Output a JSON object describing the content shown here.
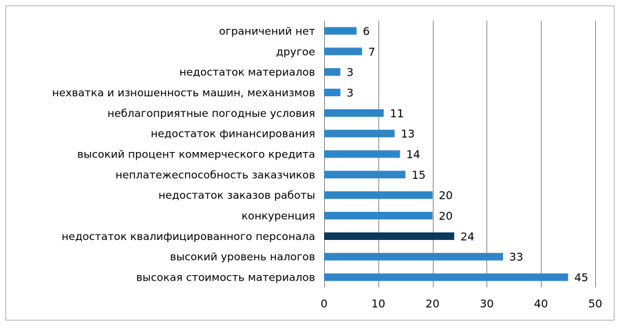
{
  "chart_data": {
    "type": "bar",
    "orientation": "horizontal",
    "title": "",
    "xlabel": "",
    "ylabel": "",
    "xlim": [
      0,
      50
    ],
    "x_ticks": [
      0,
      10,
      20,
      30,
      40,
      50
    ],
    "grid": "vertical",
    "legend": "none",
    "categories": [
      "ограничений нет",
      "другое",
      "недостаток материалов",
      "нехватка и изношенность машин, механизмов",
      "неблагоприятные погодные условия",
      "недостаток финансирования",
      "высокий процент коммерческого кредита",
      "неплатежеспособность заказчиков",
      "недостаток заказов работы",
      "конкуренция",
      "недостаток квалифицированного персонала",
      "высокий уровень налогов",
      "высокая стоимость материалов"
    ],
    "values": [
      6,
      7,
      3,
      3,
      11,
      13,
      14,
      15,
      20,
      20,
      24,
      33,
      45
    ],
    "bar_color": "#2e86c8",
    "highlight_index": 10,
    "highlight_color": "#0b3a5c"
  }
}
